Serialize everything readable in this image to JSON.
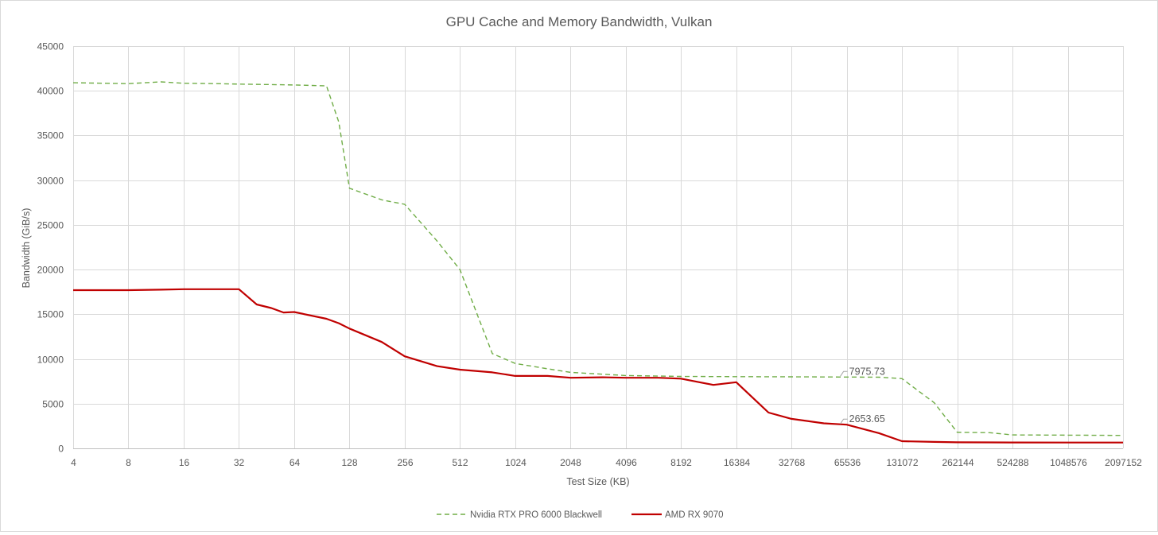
{
  "chart_data": {
    "type": "line",
    "title": "GPU Cache and Memory Bandwidth, Vulkan",
    "xlabel": "Test Size (KB)",
    "ylabel": "Bandwidth (GiB/s)",
    "x_scale": "log2",
    "x_ticks": [
      4,
      8,
      16,
      32,
      64,
      128,
      256,
      512,
      1024,
      2048,
      4096,
      8192,
      16384,
      32768,
      65536,
      131072,
      262144,
      524288,
      1048576,
      2097152
    ],
    "y_ticks": [
      0,
      5000,
      10000,
      15000,
      20000,
      25000,
      30000,
      35000,
      40000,
      45000
    ],
    "ylim": [
      0,
      45000
    ],
    "xlim": [
      4,
      2097152
    ],
    "grid": true,
    "legend_position": "bottom",
    "series": [
      {
        "name": "Nvidia RTX PRO 6000 Blackwell",
        "color": "#70ad47",
        "style": "dashed",
        "x": [
          4,
          8,
          12,
          16,
          24,
          32,
          48,
          64,
          96,
          112,
          128,
          192,
          256,
          384,
          512,
          768,
          1024,
          1536,
          2048,
          4096,
          8192,
          16384,
          32768,
          65536,
          98304,
          131072,
          196608,
          262144,
          393216,
          524288,
          1048576,
          2097152
        ],
        "y": [
          40900,
          40800,
          41000,
          40850,
          40800,
          40750,
          40700,
          40650,
          40550,
          36500,
          29100,
          27800,
          27300,
          23200,
          20000,
          10600,
          9500,
          8900,
          8500,
          8150,
          8050,
          8020,
          8000,
          7975.73,
          7960,
          7800,
          5100,
          1800,
          1750,
          1500,
          1480,
          1450
        ]
      },
      {
        "name": "AMD RX 9070",
        "color": "#c00000",
        "style": "solid",
        "x": [
          4,
          8,
          12,
          16,
          24,
          32,
          40,
          48,
          56,
          64,
          96,
          112,
          128,
          192,
          256,
          384,
          512,
          768,
          1024,
          1536,
          2048,
          3072,
          4096,
          6144,
          8192,
          12288,
          16384,
          24576,
          32768,
          49152,
          65536,
          98304,
          131072,
          196608,
          262144,
          393216,
          524288,
          1048576,
          2097152
        ],
        "y": [
          17700,
          17700,
          17750,
          17800,
          17800,
          17800,
          16100,
          15700,
          15200,
          15250,
          14500,
          14000,
          13400,
          11900,
          10300,
          9200,
          8800,
          8500,
          8100,
          8100,
          7900,
          7950,
          7900,
          7900,
          7800,
          7100,
          7400,
          4000,
          3300,
          2800,
          2653.65,
          1700,
          800,
          720,
          680,
          670,
          660,
          650,
          650
        ]
      }
    ],
    "annotations": [
      {
        "series": "Nvidia RTX PRO 6000 Blackwell",
        "x": 65536,
        "label": "7975.73"
      },
      {
        "series": "AMD RX 9070",
        "x": 65536,
        "label": "2653.65"
      }
    ]
  }
}
